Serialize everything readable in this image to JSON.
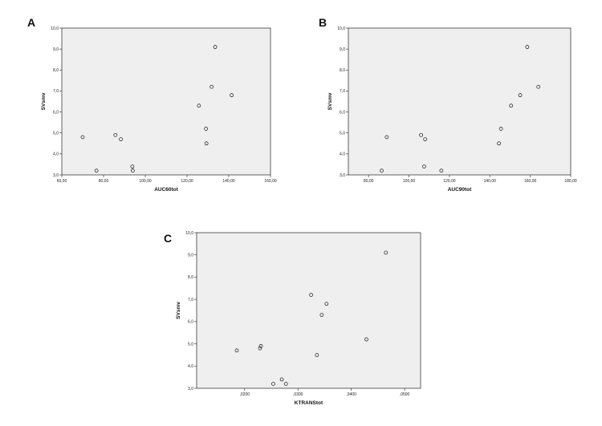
{
  "chart_data": [
    {
      "type": "scatter",
      "panel_label": "A",
      "xlabel": "AUC60tot",
      "ylabel": "SVsmv",
      "xlim": [
        60,
        160
      ],
      "ylim": [
        3.0,
        10.0
      ],
      "x_ticks": [
        60,
        80,
        100,
        120,
        140,
        160
      ],
      "x_tick_labels": [
        "60,00",
        "80,00",
        "100,00",
        "120,00",
        "140,00",
        "160,00"
      ],
      "y_ticks": [
        3,
        4,
        5,
        6,
        7,
        8,
        9,
        10
      ],
      "y_tick_labels": [
        "3,0",
        "4,0",
        "5,0",
        "6,0",
        "7,0",
        "8,0",
        "9,0",
        "10,0"
      ],
      "grid": false,
      "points": [
        {
          "x": 70.0,
          "y": 4.8
        },
        {
          "x": 76.6,
          "y": 3.2
        },
        {
          "x": 85.7,
          "y": 4.9
        },
        {
          "x": 88.3,
          "y": 4.7
        },
        {
          "x": 93.8,
          "y": 3.4
        },
        {
          "x": 94.0,
          "y": 3.2
        },
        {
          "x": 125.7,
          "y": 6.3
        },
        {
          "x": 129.1,
          "y": 5.2
        },
        {
          "x": 129.3,
          "y": 4.5
        },
        {
          "x": 131.8,
          "y": 7.2
        },
        {
          "x": 133.5,
          "y": 9.1
        },
        {
          "x": 141.4,
          "y": 6.8
        }
      ]
    },
    {
      "type": "scatter",
      "panel_label": "B",
      "xlabel": "AUC90tot",
      "ylabel": "SVsmv",
      "xlim": [
        70,
        180
      ],
      "ylim": [
        3.0,
        10.0
      ],
      "x_ticks": [
        80,
        100,
        120,
        140,
        160,
        180
      ],
      "x_tick_labels": [
        "80,00",
        "100,00",
        "120,00",
        "140,00",
        "160,00",
        "180,00"
      ],
      "y_ticks": [
        3,
        4,
        5,
        6,
        7,
        8,
        9,
        10
      ],
      "y_tick_labels": [
        "3,0",
        "4,0",
        "5,0",
        "6,0",
        "7,0",
        "8,0",
        "9,0",
        "10,0"
      ],
      "grid": false,
      "points": [
        {
          "x": 86.5,
          "y": 3.2
        },
        {
          "x": 89.0,
          "y": 4.8
        },
        {
          "x": 106.0,
          "y": 4.9
        },
        {
          "x": 107.5,
          "y": 3.4
        },
        {
          "x": 108.0,
          "y": 4.7
        },
        {
          "x": 116.0,
          "y": 3.2
        },
        {
          "x": 144.5,
          "y": 4.5
        },
        {
          "x": 145.5,
          "y": 5.2
        },
        {
          "x": 150.5,
          "y": 6.3
        },
        {
          "x": 155.0,
          "y": 6.8
        },
        {
          "x": 158.5,
          "y": 9.1
        },
        {
          "x": 164.0,
          "y": 7.2
        }
      ]
    },
    {
      "type": "scatter",
      "panel_label": "C",
      "xlabel": "KTRANStot",
      "ylabel": "SVsmv",
      "xlim": [
        0.011,
        0.053
      ],
      "ylim": [
        3.0,
        10.0
      ],
      "x_ticks": [
        0.02,
        0.03,
        0.04,
        0.05
      ],
      "x_tick_labels": [
        ",0200",
        ",0300",
        ",0400",
        ",0500"
      ],
      "y_ticks": [
        3,
        4,
        5,
        6,
        7,
        8,
        9,
        10
      ],
      "y_tick_labels": [
        "3,0",
        "4,0",
        "5,0",
        "6,0",
        "7,0",
        "8,0",
        "9,0",
        "10,0"
      ],
      "grid": false,
      "points": [
        {
          "x": 0.01853,
          "y": 4.7
        },
        {
          "x": 0.02288,
          "y": 4.8
        },
        {
          "x": 0.02305,
          "y": 4.9
        },
        {
          "x": 0.02536,
          "y": 3.2
        },
        {
          "x": 0.02697,
          "y": 3.4
        },
        {
          "x": 0.02774,
          "y": 3.2
        },
        {
          "x": 0.03247,
          "y": 7.2
        },
        {
          "x": 0.03356,
          "y": 4.5
        },
        {
          "x": 0.03446,
          "y": 6.3
        },
        {
          "x": 0.03536,
          "y": 6.8
        },
        {
          "x": 0.04284,
          "y": 5.2
        },
        {
          "x": 0.04649,
          "y": 9.1
        }
      ]
    }
  ]
}
